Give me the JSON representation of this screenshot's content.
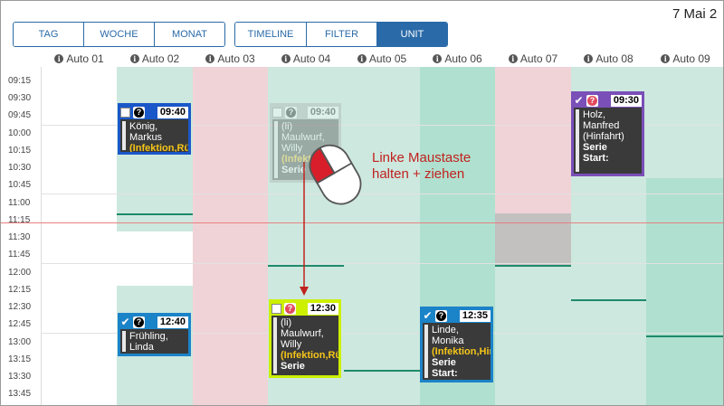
{
  "header": {
    "date": "7 Mai 2"
  },
  "view_buttons": [
    {
      "label": "TAG",
      "active": false
    },
    {
      "label": "WOCHE",
      "active": false
    },
    {
      "label": "MONAT",
      "active": false
    }
  ],
  "mode_buttons": [
    {
      "label": "TIMELINE",
      "active": false
    },
    {
      "label": "FILTER",
      "active": false
    },
    {
      "label": "UNIT",
      "active": true
    }
  ],
  "columns": [
    "Auto 01",
    "Auto 02",
    "Auto 03",
    "Auto 04",
    "Auto 05",
    "Auto 06",
    "Auto 07",
    "Auto 08",
    "Auto 09"
  ],
  "times": [
    "09:15",
    "09:30",
    "09:45",
    "10:00",
    "10:15",
    "10:30",
    "10:45",
    "11:00",
    "11:15",
    "11:30",
    "11:45",
    "12:00",
    "12:15",
    "12:30",
    "12:45",
    "13:00",
    "13:15",
    "13:30",
    "13:45"
  ],
  "colors": {
    "free": "#cde8df",
    "blocked": "#f0d3d7",
    "busy": "#b0e0cf",
    "selected": "#c3c0c0",
    "current_time": "#e98080"
  },
  "appointments": {
    "koenig": {
      "time": "09:40",
      "lines": [
        "König,",
        "Markus",
        "(Infektion,Rü"
      ]
    },
    "ghost": {
      "time": "09:40",
      "lines": [
        "(li)",
        "Maulwurf,",
        "Willy",
        "(Infektion",
        "Serie"
      ]
    },
    "holz": {
      "time": "09:30",
      "lines": [
        "Holz,",
        "Manfred",
        "(Hinfahrt)",
        "Serie",
        "Start:"
      ]
    },
    "fruehling": {
      "time": "12:40",
      "lines": [
        "Frühling,",
        "Linda"
      ]
    },
    "maulwurf": {
      "time": "12:30",
      "lines": [
        "(li)",
        "Maulwurf,",
        "Willy",
        "(Infektion,Rü",
        "Serie"
      ]
    },
    "linde": {
      "time": "12:35",
      "lines": [
        "Linde,",
        "Monika",
        "(Infektion,Hir",
        "Serie",
        "Start:"
      ]
    }
  },
  "instruction": {
    "line1": "Linke Maustaste",
    "line2": "halten + ziehen"
  },
  "info_glyph": "i",
  "question_glyph": "?"
}
